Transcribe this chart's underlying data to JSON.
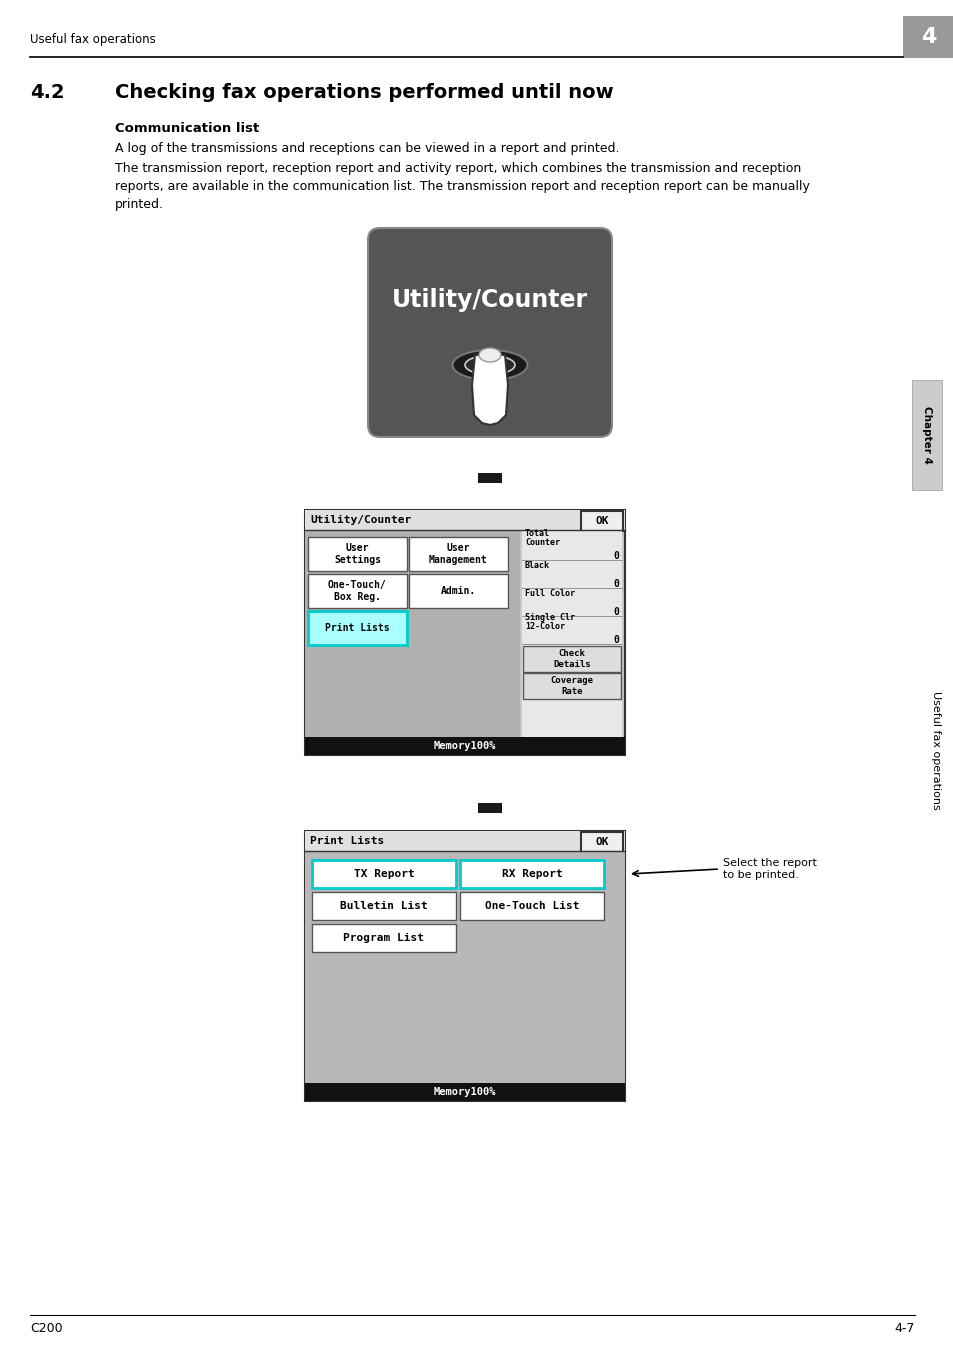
{
  "page_bg": "#ffffff",
  "header_text": "Useful fax operations",
  "header_num": "4",
  "header_num_bg": "#999999",
  "footer_left": "C200",
  "footer_right": "4-7",
  "section_num": "4.2",
  "section_title": "Checking fax operations performed until now",
  "subsection_title": "Communication list",
  "body_text1": "A log of the transmissions and receptions can be viewed in a report and printed.",
  "body_text2": "The transmission report, reception report and activity report, which combines the transmission and reception\nreports, are available in the communication list. The transmission report and reception report can be manually\nprinted.",
  "sidebar_chapter": "Chapter 4",
  "sidebar_text": "Useful fax operations",
  "utility_button_label": "Utility/Counter",
  "screen1_title": "Utility/Counter",
  "screen1_ok": "OK",
  "screen1_highlight": "Print Lists",
  "screen1_footer": "Memory100%",
  "screen2_title": "Print Lists",
  "screen2_ok": "OK",
  "screen2_buttons": [
    [
      "TX Report",
      "RX Report"
    ],
    [
      "Bulletin List",
      "One-Touch List"
    ],
    [
      "Program List",
      ""
    ]
  ],
  "screen2_footer": "Memory100%",
  "annotation_text": "Select the report\nto be printed."
}
